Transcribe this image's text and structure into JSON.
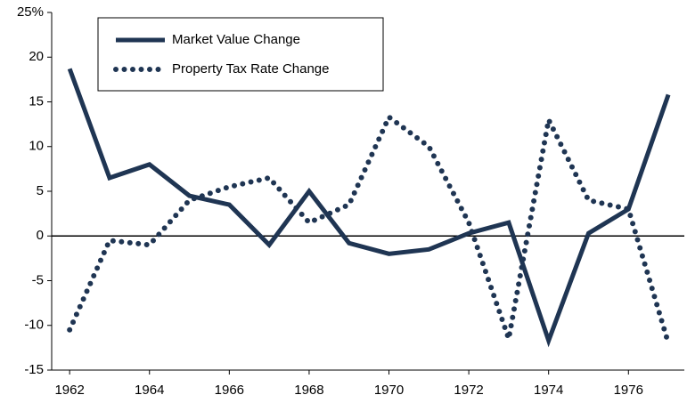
{
  "chart_data": {
    "type": "line",
    "x": [
      1962,
      1963,
      1964,
      1965,
      1966,
      1967,
      1968,
      1969,
      1970,
      1971,
      1972,
      1973,
      1974,
      1975,
      1976,
      1977
    ],
    "series": [
      {
        "name": "Market Value Change",
        "color": "#1f3553",
        "style": "solid",
        "values": [
          18.7,
          6.5,
          8,
          4.5,
          3.5,
          -1,
          5,
          -0.8,
          -2,
          -1.5,
          0.3,
          1.5,
          -11.7,
          0.3,
          3,
          15.8
        ]
      },
      {
        "name": "Property Tax Rate Change",
        "color": "#1f3553",
        "style": "dotted",
        "values": [
          -10.5,
          -0.5,
          -1,
          4,
          5.5,
          6.5,
          1.5,
          3.5,
          13.3,
          10,
          1.5,
          -11.5,
          13,
          4,
          3,
          -12
        ]
      }
    ],
    "xlim": [
      1961.55,
      1977.4
    ],
    "xticks": [
      1962,
      1964,
      1966,
      1968,
      1970,
      1972,
      1974,
      1976
    ],
    "ylim": [
      -15,
      25
    ],
    "yticks": [
      -15,
      -10,
      -5,
      0,
      5,
      10,
      15,
      20,
      {
        "value": 25,
        "label": "25%"
      }
    ],
    "grid": false,
    "legend": "upper left"
  }
}
